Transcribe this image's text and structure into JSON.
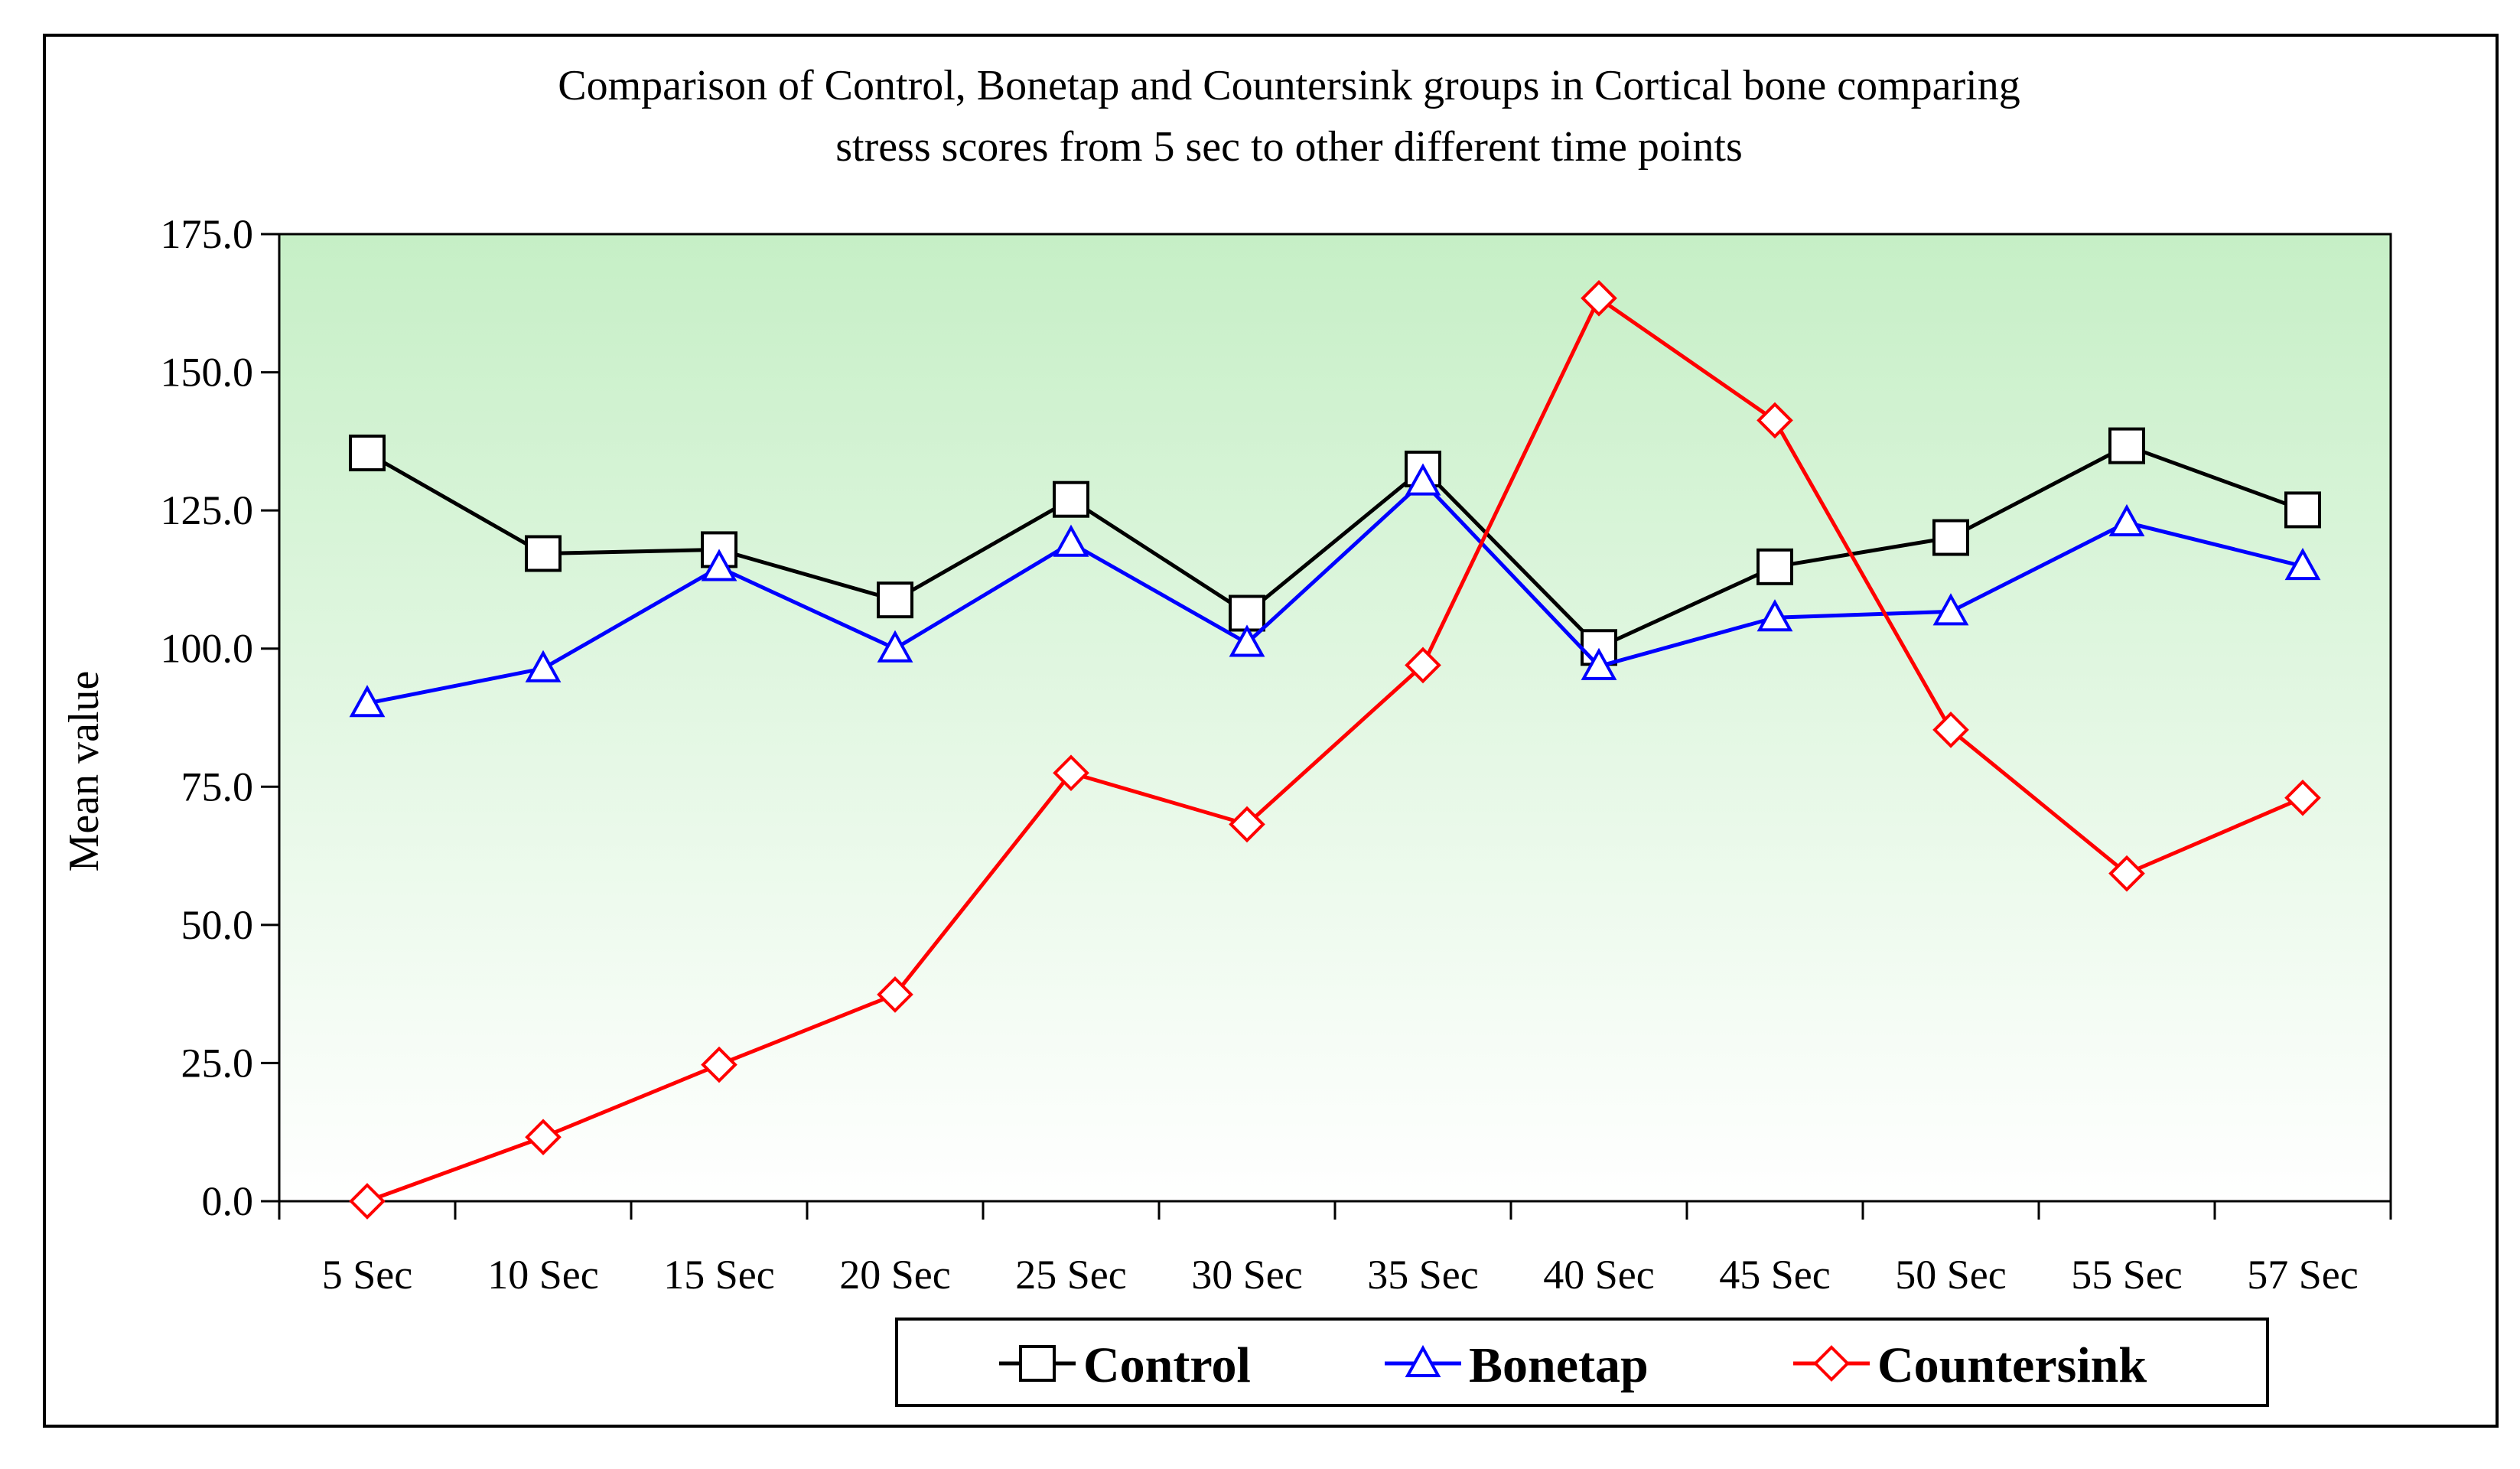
{
  "chart_data": {
    "type": "line",
    "title": "Comparison of Control, Bonetap and Countersink groups in Cortical bone comparing stress scores from 5 sec to other different time points",
    "title_lines": [
      "Comparison of Control, Bonetap and Countersink groups in Cortical bone comparing",
      "stress scores from 5 sec to other different time points"
    ],
    "xlabel": "",
    "ylabel": "Mean value",
    "ylim": [
      0,
      175
    ],
    "yticks": [
      0,
      25,
      50,
      75,
      100,
      125,
      150,
      175
    ],
    "ytick_labels": [
      "0.0",
      "25.0",
      "50.0",
      "75.0",
      "100.0",
      "125.0",
      "150.0",
      "175.0"
    ],
    "categories": [
      "5 Sec",
      "10 Sec",
      "15 Sec",
      "20 Sec",
      "25 Sec",
      "30 Sec",
      "35 Sec",
      "40 Sec",
      "45 Sec",
      "50 Sec",
      "55 Sec",
      "57 Sec"
    ],
    "plot_background": "gradient #c8f0c8 to #ffffff",
    "legend_position": "bottom",
    "series": [
      {
        "name": "Control",
        "color": "#000000",
        "marker": "square",
        "values": [
          135.4,
          117.2,
          117.9,
          108.8,
          127.0,
          106.4,
          132.5,
          100.2,
          114.8,
          120.1,
          136.7,
          125.1
        ]
      },
      {
        "name": "Bonetap",
        "color": "#0000ff",
        "marker": "triangle",
        "values": [
          90.1,
          96.4,
          114.7,
          100.0,
          119.1,
          101.0,
          130.2,
          96.8,
          105.6,
          106.7,
          122.8,
          114.9
        ]
      },
      {
        "name": "Countersink",
        "color": "#ff0000",
        "marker": "diamond",
        "values": [
          0.0,
          11.6,
          24.7,
          37.4,
          77.5,
          68.2,
          97.0,
          163.4,
          141.3,
          85.3,
          59.3,
          73.0
        ]
      }
    ]
  }
}
